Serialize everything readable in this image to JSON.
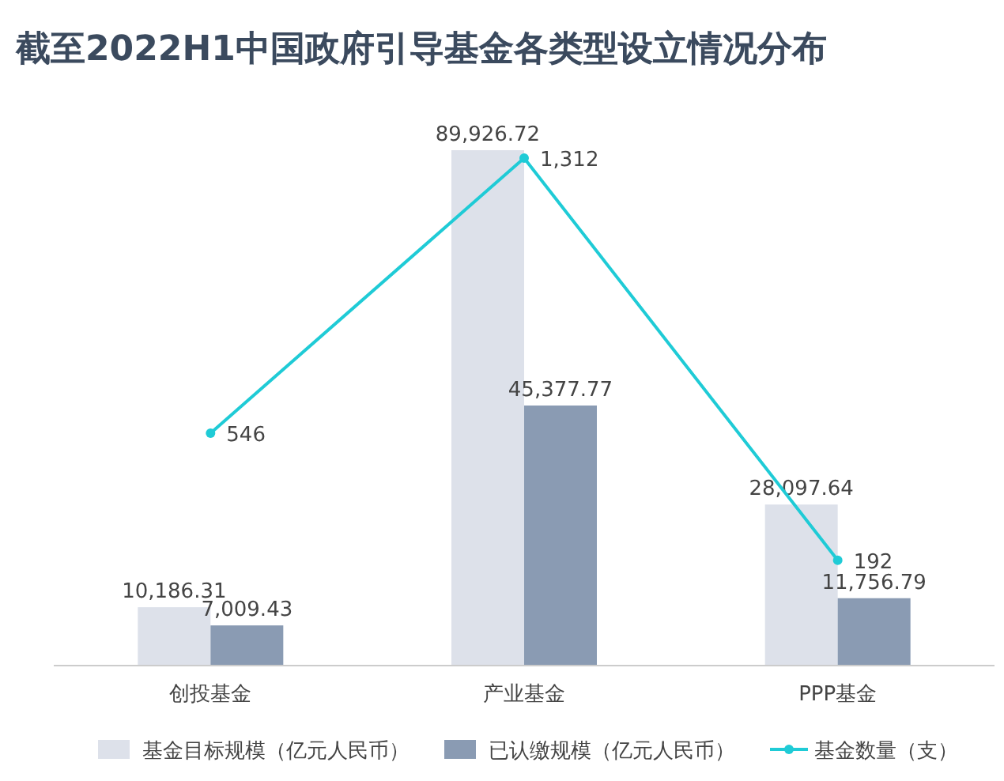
{
  "chart_data": {
    "type": "bar",
    "title": "截至2022H1中国政府引导基金各类型设立情况分布",
    "categories": [
      "创投基金",
      "产业基金",
      "PPP基金"
    ],
    "series": [
      {
        "name": "基金目标规模（亿元人民币）",
        "color": "#dde1ea",
        "values": [
          10186.31,
          89926.72,
          28097.64
        ],
        "value_labels": [
          "10,186.31",
          "89,926.72",
          "28,097.64"
        ]
      },
      {
        "name": "已认缴规模（亿元人民币）",
        "color": "#8a9bb3",
        "values": [
          7009.43,
          45377.77,
          11756.79
        ],
        "value_labels": [
          "7,009.43",
          "45,377.77",
          "11,756.79"
        ]
      },
      {
        "name": "基金数量（支）",
        "type": "line",
        "axis": "y2",
        "color": "#1fcbd6",
        "marker": "circle",
        "values": [
          546,
          1312,
          192
        ],
        "value_labels": [
          "546",
          "1,312",
          "192"
        ]
      }
    ],
    "legend": "bottom",
    "tick_labels": "x"
  }
}
